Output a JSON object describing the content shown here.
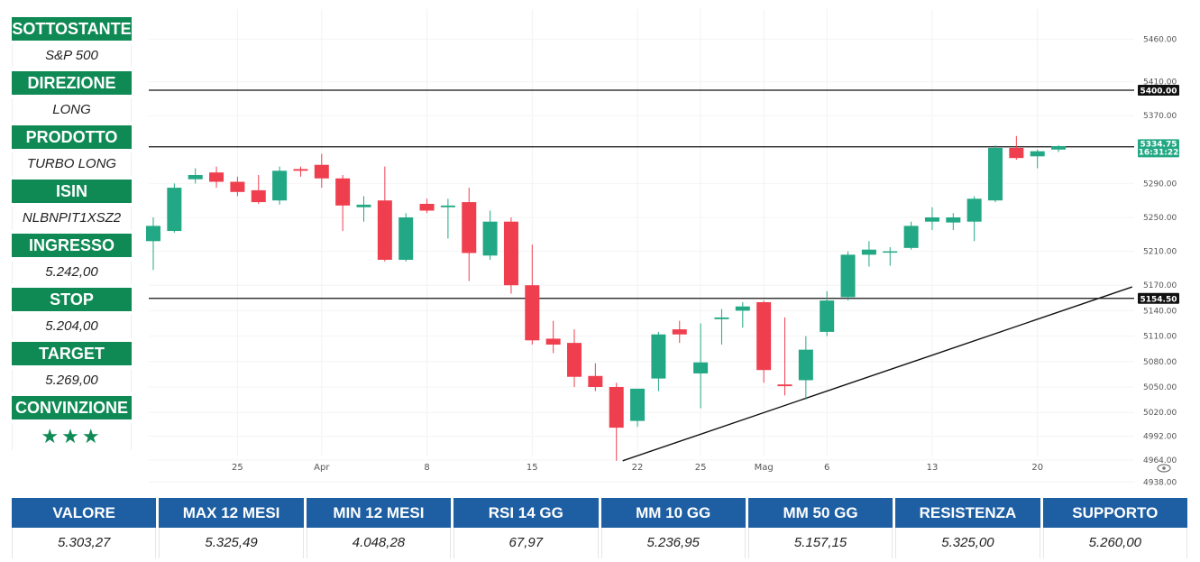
{
  "sidebar": [
    {
      "label": "SOTTOSTANTE",
      "value": "S&P 500"
    },
    {
      "label": "DIREZIONE",
      "value": "LONG"
    },
    {
      "label": "PRODOTTO",
      "value": "TURBO LONG"
    },
    {
      "label": "ISIN",
      "value": "NLBNPIT1XSZ2"
    },
    {
      "label": "INGRESSO",
      "value": "5.242,00"
    },
    {
      "label": "STOP",
      "value": "5.204,00"
    },
    {
      "label": "TARGET",
      "value": "5.269,00"
    },
    {
      "label": "CONVINZIONE",
      "value": "★★★"
    }
  ],
  "colors": {
    "up": "#22a884",
    "down": "#ef3f4f",
    "header_green": "#0f8a55",
    "header_blue": "#1e5fa3"
  },
  "chart_data": {
    "type": "candlestick",
    "y_ticks": [
      "5460.00",
      "5410.00",
      "5370.00",
      "5290.00",
      "5250.00",
      "5210.00",
      "5170.00",
      "5140.00",
      "5110.00",
      "5080.00",
      "5050.00",
      "5020.00",
      "4992.00",
      "4964.00",
      "4938.00"
    ],
    "x_ticks": [
      {
        "label": "25",
        "index": 4
      },
      {
        "label": "Apr",
        "index": 8
      },
      {
        "label": "8",
        "index": 13
      },
      {
        "label": "15",
        "index": 18
      },
      {
        "label": "22",
        "index": 23
      },
      {
        "label": "25",
        "index": 26
      },
      {
        "label": "Mag",
        "index": 29
      },
      {
        "label": "6",
        "index": 32
      },
      {
        "label": "13",
        "index": 37
      },
      {
        "label": "20",
        "index": 42
      }
    ],
    "horizontal_levels": [
      {
        "value": 5400,
        "label": "5400.00"
      },
      {
        "value": 5333.25,
        "label": "5333.25"
      },
      {
        "value": 5154.5,
        "label": "5154.50"
      }
    ],
    "last_price": {
      "value": "5334.75",
      "timer": "16:31:22"
    },
    "candles": [
      {
        "o": 5222,
        "h": 5250,
        "l": 5188,
        "c": 5240
      },
      {
        "o": 5234,
        "h": 5290,
        "l": 5232,
        "c": 5285
      },
      {
        "o": 5295,
        "h": 5308,
        "l": 5290,
        "c": 5300
      },
      {
        "o": 5303,
        "h": 5310,
        "l": 5285,
        "c": 5292
      },
      {
        "o": 5292,
        "h": 5298,
        "l": 5275,
        "c": 5280
      },
      {
        "o": 5282,
        "h": 5300,
        "l": 5266,
        "c": 5268
      },
      {
        "o": 5270,
        "h": 5310,
        "l": 5265,
        "c": 5305
      },
      {
        "o": 5307,
        "h": 5310,
        "l": 5298,
        "c": 5305
      },
      {
        "o": 5312,
        "h": 5325,
        "l": 5285,
        "c": 5296
      },
      {
        "o": 5296,
        "h": 5300,
        "l": 5234,
        "c": 5264
      },
      {
        "o": 5262,
        "h": 5275,
        "l": 5245,
        "c": 5265
      },
      {
        "o": 5270,
        "h": 5310,
        "l": 5198,
        "c": 5200
      },
      {
        "o": 5200,
        "h": 5255,
        "l": 5198,
        "c": 5250
      },
      {
        "o": 5266,
        "h": 5272,
        "l": 5255,
        "c": 5258
      },
      {
        "o": 5262,
        "h": 5272,
        "l": 5225,
        "c": 5264
      },
      {
        "o": 5268,
        "h": 5285,
        "l": 5175,
        "c": 5208
      },
      {
        "o": 5205,
        "h": 5258,
        "l": 5200,
        "c": 5245
      },
      {
        "o": 5245,
        "h": 5250,
        "l": 5160,
        "c": 5170
      },
      {
        "o": 5170,
        "h": 5218,
        "l": 5100,
        "c": 5105
      },
      {
        "o": 5107,
        "h": 5128,
        "l": 5090,
        "c": 5100
      },
      {
        "o": 5102,
        "h": 5118,
        "l": 5050,
        "c": 5062
      },
      {
        "o": 5063,
        "h": 5078,
        "l": 5045,
        "c": 5050
      },
      {
        "o": 5050,
        "h": 5055,
        "l": 4963,
        "c": 5002
      },
      {
        "o": 5010,
        "h": 5048,
        "l": 5003,
        "c": 5048
      },
      {
        "o": 5060,
        "h": 5115,
        "l": 5045,
        "c": 5112
      },
      {
        "o": 5118,
        "h": 5128,
        "l": 5102,
        "c": 5112
      },
      {
        "o": 5066,
        "h": 5125,
        "l": 5025,
        "c": 5079
      },
      {
        "o": 5130,
        "h": 5142,
        "l": 5100,
        "c": 5132
      },
      {
        "o": 5140,
        "h": 5150,
        "l": 5120,
        "c": 5145
      },
      {
        "o": 5150,
        "h": 5152,
        "l": 5055,
        "c": 5070
      },
      {
        "o": 5053,
        "h": 5132,
        "l": 5040,
        "c": 5051
      },
      {
        "o": 5058,
        "h": 5110,
        "l": 5035,
        "c": 5094
      },
      {
        "o": 5115,
        "h": 5163,
        "l": 5110,
        "c": 5152
      },
      {
        "o": 5156,
        "h": 5210,
        "l": 5152,
        "c": 5206
      },
      {
        "o": 5206,
        "h": 5222,
        "l": 5192,
        "c": 5212
      },
      {
        "o": 5210,
        "h": 5215,
        "l": 5193,
        "c": 5210
      },
      {
        "o": 5214,
        "h": 5245,
        "l": 5212,
        "c": 5240
      },
      {
        "o": 5245,
        "h": 5262,
        "l": 5235,
        "c": 5250
      },
      {
        "o": 5244,
        "h": 5255,
        "l": 5235,
        "c": 5250
      },
      {
        "o": 5245,
        "h": 5275,
        "l": 5222,
        "c": 5272
      },
      {
        "o": 5270,
        "h": 5335,
        "l": 5268,
        "c": 5332
      },
      {
        "o": 5332,
        "h": 5346,
        "l": 5318,
        "c": 5320
      },
      {
        "o": 5322,
        "h": 5330,
        "l": 5308,
        "c": 5328
      },
      {
        "o": 5330,
        "h": 5335,
        "l": 5327,
        "c": 5334
      }
    ],
    "trendline": {
      "from": {
        "index": 22.3,
        "price": 4963
      },
      "to": {
        "index": 46.5,
        "price": 5168
      }
    }
  },
  "table": {
    "headers": [
      "VALORE",
      "MAX 12 MESI",
      "MIN 12 MESI",
      "RSI 14 GG",
      "MM 10 GG",
      "MM 50 GG",
      "RESISTENZA",
      "SUPPORTO"
    ],
    "values": [
      "5.303,27",
      "5.325,49",
      "4.048,28",
      "67,97",
      "5.236,95",
      "5.157,15",
      "5.325,00",
      "5.260,00"
    ]
  }
}
